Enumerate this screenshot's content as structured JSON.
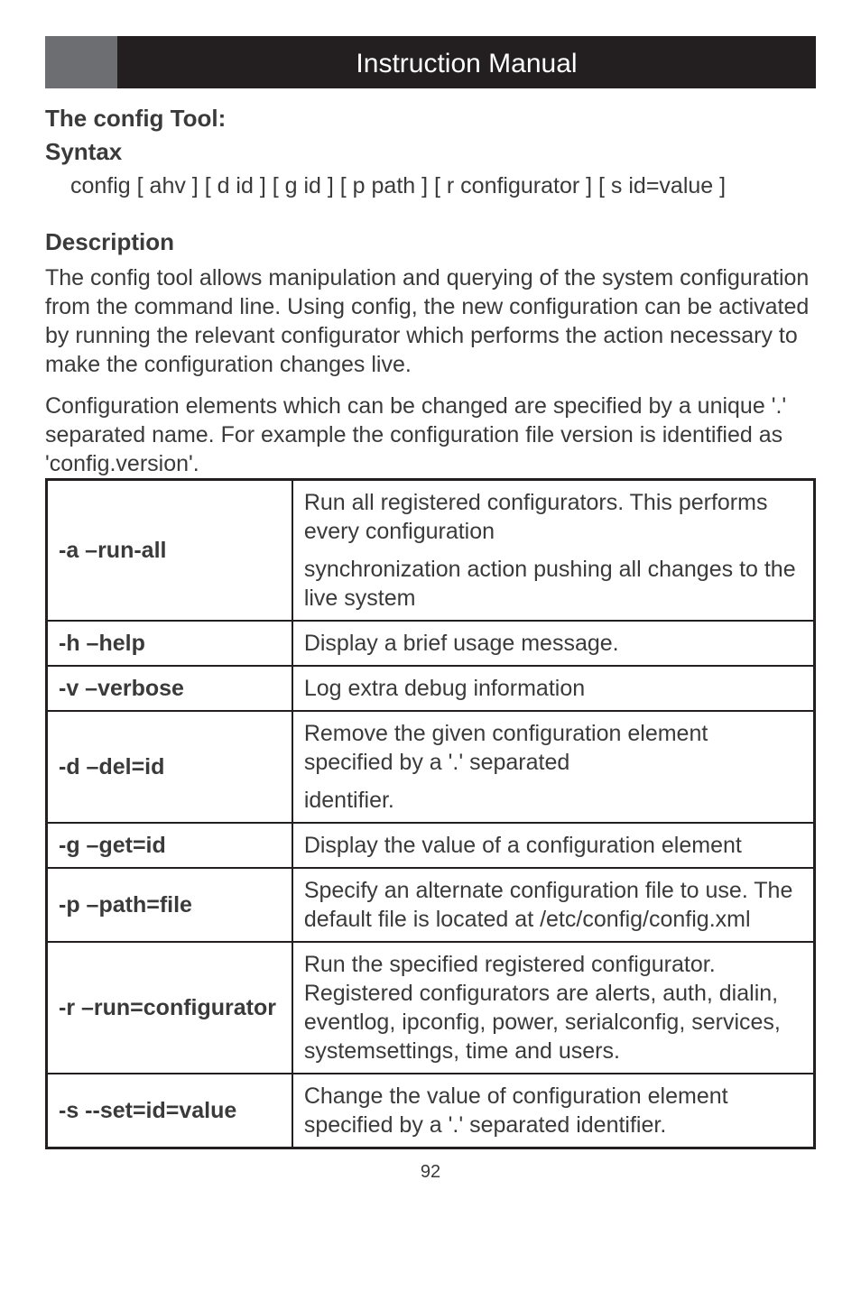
{
  "header": {
    "title": "Instruction Manual"
  },
  "title1": "The config Tool:",
  "title2": "Syntax",
  "syntax": "config [ ahv ] [ d id ] [ g id ] [ p path ] [ r configurator ] [ s id=value ]",
  "descTitle": "Description",
  "para1": "The config tool allows manipulation and querying of the system configuration from the command line. Using config, the new configuration can be activated by running the relevant configurator which performs the action necessary to make the configuration changes live.",
  "para2": "Configuration elements which can be changed are specified by a unique '.' separated name. For example the configuration file version is identified as 'config.version'.",
  "table": {
    "rows": [
      {
        "flag": "-a –run-all",
        "desc": [
          "Run all registered configurators. This performs every configuration",
          "synchronization action pushing all changes to the live system"
        ]
      },
      {
        "flag": "-h –help",
        "desc": [
          "Display a brief usage message."
        ]
      },
      {
        "flag": "-v –verbose",
        "desc": [
          "Log extra debug information"
        ]
      },
      {
        "flag": "-d –del=id",
        "desc": [
          "Remove the given configuration element specified by a '.' separated",
          "identifier."
        ]
      },
      {
        "flag": "-g –get=id",
        "desc": [
          "Display the value of a configuration element"
        ]
      },
      {
        "flag": "-p –path=file",
        "desc": [
          "Specify an alternate configuration file to use. The default file is located at /etc/config/config.xml"
        ]
      },
      {
        "flag": "-r –run=configurator",
        "desc": [
          "Run the specified registered configurator. Registered configurators are alerts, auth, dialin, eventlog, ipconfig, power, serialconfig, services, systemsettings, time and users."
        ]
      },
      {
        "flag": "-s --set=id=value",
        "desc": [
          "Change the value of configuration element specified by a '.' separated identifier."
        ]
      }
    ]
  },
  "pageNumber": "92"
}
